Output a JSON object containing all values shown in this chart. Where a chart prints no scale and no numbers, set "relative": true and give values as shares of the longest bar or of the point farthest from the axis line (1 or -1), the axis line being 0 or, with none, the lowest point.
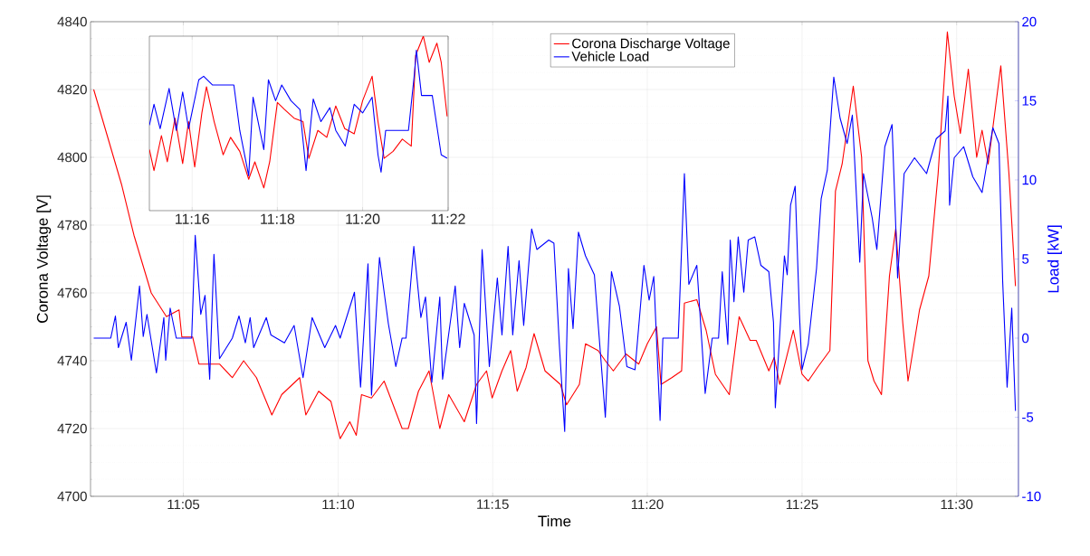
{
  "chart_data": [
    {
      "type": "line",
      "xlabel": "Time",
      "ylabel": "Corona Voltage [V]",
      "y2label": "Load [kW]",
      "xlim": [
        11.0333,
        11.5333
      ],
      "xticks": [
        {
          "value": 11.0833,
          "label": "11:05"
        },
        {
          "value": 11.1667,
          "label": "11:10"
        },
        {
          "value": 11.25,
          "label": "11:15"
        },
        {
          "value": 11.3333,
          "label": "11:20"
        },
        {
          "value": 11.4167,
          "label": "11:25"
        },
        {
          "value": 11.5,
          "label": "11:30"
        }
      ],
      "ylim": [
        4700,
        4840
      ],
      "yticks": [
        4700,
        4720,
        4740,
        4760,
        4780,
        4800,
        4820,
        4840
      ],
      "y2lim": [
        -10,
        20
      ],
      "y2ticks": [
        -10,
        -5,
        0,
        5,
        10,
        15,
        20
      ],
      "grid": true,
      "legend": "top",
      "series": [
        {
          "name": "Corona Discharge Voltage",
          "color": "#ff0000",
          "x": [
            11.035,
            11.05,
            11.0567,
            11.066,
            11.0742,
            11.081,
            11.0825,
            11.0883,
            11.0917,
            11.1028,
            11.1097,
            11.1158,
            11.1227,
            11.131,
            11.1363,
            11.146,
            11.1493,
            11.1562,
            11.1628,
            11.1678,
            11.173,
            11.1765,
            11.1793,
            11.1847,
            11.1915,
            11.2012,
            11.2045,
            11.21,
            11.2157,
            11.2215,
            11.2263,
            11.2347,
            11.2413,
            11.2467,
            11.2497,
            11.255,
            11.2597,
            11.2632,
            11.268,
            11.2723,
            11.2782,
            11.2865,
            11.2898,
            11.2967,
            11.3,
            11.3068,
            11.3107,
            11.315,
            11.3218,
            11.3287,
            11.3333,
            11.3383,
            11.3407,
            11.3465,
            11.3518,
            11.3533,
            11.36,
            11.365,
            11.37,
            11.375,
            11.3775,
            11.3828,
            11.3887,
            11.392,
            11.3988,
            11.4017,
            11.4047,
            11.412,
            11.4167,
            11.42,
            11.425,
            11.4317,
            11.4347,
            11.4383,
            11.4443,
            11.4488,
            11.4522,
            11.4555,
            11.4595,
            11.4638,
            11.4672,
            11.471,
            11.4738,
            11.48,
            11.485,
            11.49,
            11.495,
            11.4987,
            11.502,
            11.5063,
            11.5108,
            11.5137,
            11.517,
            11.5238,
            11.5282,
            11.5317
          ],
          "values": [
            4820,
            4792,
            4777,
            4760,
            4753,
            4755,
            4747,
            4747,
            4739,
            4739,
            4735,
            4740,
            4735,
            4724,
            4730,
            4735,
            4724,
            4731,
            4728,
            4717,
            4722,
            4718,
            4730,
            4729,
            4734,
            4720,
            4720,
            4731,
            4737,
            4720,
            4730,
            4722,
            4733,
            4737,
            4729,
            4737,
            4743,
            4731,
            4738,
            4748,
            4737,
            4733,
            4727,
            4733,
            4745,
            4743,
            4740,
            4737,
            4742,
            4739,
            4745,
            4750,
            4733,
            4735,
            4737,
            4757,
            4758,
            4749,
            4736,
            4732,
            4730,
            4753,
            4746,
            4746,
            4737,
            4741,
            4733,
            4749,
            4736,
            4734,
            4738,
            4743,
            4790,
            4798,
            4821,
            4800,
            4740,
            4734,
            4730,
            4765,
            4779,
            4751,
            4734,
            4755,
            4765,
            4795,
            4837,
            4818,
            4807,
            4826,
            4800,
            4808,
            4798,
            4827,
            4795,
            4762
          ]
        },
        {
          "name": "Vehicle Load",
          "color": "#0000ff",
          "axis": "y2",
          "x": [
            11.035,
            11.0442,
            11.0467,
            11.0483,
            11.0525,
            11.0553,
            11.0597,
            11.0617,
            11.0637,
            11.0688,
            11.0728,
            11.0738,
            11.0762,
            11.0795,
            11.0878,
            11.0897,
            11.0927,
            11.095,
            11.0975,
            11.0998,
            11.1028,
            11.1097,
            11.1133,
            11.1167,
            11.1193,
            11.1212,
            11.128,
            11.1305,
            11.1378,
            11.143,
            11.1478,
            11.1527,
            11.1595,
            11.1653,
            11.1678,
            11.1755,
            11.1788,
            11.1828,
            11.1847,
            11.189,
            11.1938,
            11.1978,
            11.2012,
            11.2033,
            11.2075,
            11.2113,
            11.2138,
            11.2172,
            11.2215,
            11.223,
            11.2298,
            11.2322,
            11.2347,
            11.24,
            11.2413,
            11.2443,
            11.2482,
            11.2525,
            11.255,
            11.2583,
            11.2608,
            11.2642,
            11.2667,
            11.271,
            11.2738,
            11.2802,
            11.283,
            11.286,
            11.2888,
            11.2908,
            11.2933,
            11.2962,
            11.3,
            11.3048,
            11.3107,
            11.314,
            11.3183,
            11.3223,
            11.3267,
            11.3315,
            11.3343,
            11.3368,
            11.3402,
            11.3417,
            11.35,
            11.3533,
            11.3557,
            11.36,
            11.3645,
            11.3683,
            11.3717,
            11.3737,
            11.3767,
            11.378,
            11.38,
            11.3823,
            11.3853,
            11.3877,
            11.3912,
            11.3945,
            11.3988,
            11.4013,
            11.4023,
            11.4072,
            11.4087,
            11.4105,
            11.413,
            11.4153,
            11.4167,
            11.42,
            11.4245,
            11.427,
            11.4303,
            11.4338,
            11.4372,
            11.441,
            11.4438,
            11.4478,
            11.4498,
            11.4545,
            11.457,
            11.4613,
            11.4652,
            11.4682,
            11.4717,
            11.4773,
            11.4838,
            11.489,
            11.4938,
            11.4953,
            11.4962,
            11.4987,
            11.5038,
            11.5087,
            11.5137,
            11.5195,
            11.5228,
            11.5248,
            11.5272,
            11.5297,
            11.5317
          ],
          "values": [
            0,
            0,
            1.4,
            -0.6,
            1.0,
            -1.4,
            3.3,
            0.1,
            1.5,
            -2.2,
            1.3,
            -1.4,
            1.9,
            0,
            0,
            6.5,
            1.5,
            2.7,
            -2.6,
            5.3,
            -1.3,
            0,
            1.4,
            -0.3,
            1.3,
            -0.6,
            1.3,
            0.2,
            -0.3,
            0.8,
            -2.5,
            1.3,
            -0.6,
            0.8,
            0,
            2.9,
            -3.1,
            4.7,
            -3.6,
            5.1,
            0.9,
            -1.8,
            0,
            0,
            5.8,
            1.3,
            2.6,
            -2.8,
            2.6,
            -2.6,
            3.3,
            -0.6,
            2.2,
            0.2,
            -5.4,
            5.6,
            -1.8,
            3.8,
            0.2,
            5.8,
            0.2,
            4.9,
            0.8,
            6.9,
            5.6,
            6.2,
            6.0,
            -0.6,
            -5.9,
            4.4,
            0.6,
            6.7,
            5.2,
            4.0,
            -5.0,
            4.2,
            2.0,
            -1.8,
            -2.0,
            4.6,
            2.4,
            3.9,
            -5.2,
            0,
            0,
            10.4,
            3.4,
            4.6,
            -3.5,
            0,
            0,
            4.2,
            -0.4,
            6.2,
            2.3,
            6.4,
            2.9,
            6.2,
            6.4,
            4.6,
            4.2,
            1.0,
            -4.4,
            5.2,
            4.0,
            8.4,
            9.6,
            1.5,
            -2.0,
            -0.4,
            4.4,
            8.8,
            10.6,
            16.5,
            13.9,
            12.3,
            14.1,
            4.8,
            10.4,
            7.6,
            5.6,
            12.1,
            13.5,
            3.8,
            10.4,
            11.4,
            10.4,
            12.6,
            13.1,
            15.3,
            8.4,
            11.4,
            12.1,
            10.2,
            9.2,
            13.3,
            12.3,
            3.6,
            -3.1,
            1.9,
            -4.6
          ]
        }
      ]
    },
    {
      "type": "line",
      "relative": true,
      "tick_labels": "x",
      "grid": true,
      "xlim": [
        11.25,
        11.3667
      ],
      "xticks": [
        {
          "value": 11.2667,
          "label": "11:16"
        },
        {
          "value": 11.3,
          "label": "11:18"
        },
        {
          "value": 11.3333,
          "label": "11:20"
        },
        {
          "value": 11.3667,
          "label": "11:22"
        }
      ],
      "series": [
        {
          "color": "#ff0000",
          "x": [
            11.25,
            11.2518,
            11.2547,
            11.257,
            11.26,
            11.263,
            11.2653,
            11.2677,
            11.2705,
            11.2723,
            11.2753,
            11.2788,
            11.2817,
            11.2853,
            11.2888,
            11.2912,
            11.2947,
            11.297,
            11.3,
            11.3028,
            11.3065,
            11.31,
            11.3123,
            11.3158,
            11.3193,
            11.3228,
            11.3263,
            11.33,
            11.3333,
            11.337,
            11.3393,
            11.3417,
            11.3452,
            11.3488,
            11.3523,
            11.354,
            11.357,
            11.3593,
            11.3623,
            11.364,
            11.3663
          ],
          "values": [
            0.35,
            0.23,
            0.43,
            0.28,
            0.53,
            0.27,
            0.51,
            0.25,
            0.56,
            0.71,
            0.51,
            0.32,
            0.42,
            0.34,
            0.18,
            0.28,
            0.13,
            0.28,
            0.62,
            0.58,
            0.53,
            0.51,
            0.3,
            0.46,
            0.42,
            0.6,
            0.47,
            0.44,
            0.63,
            0.77,
            0.51,
            0.3,
            0.34,
            0.41,
            0.37,
            0.89,
            1.0,
            0.85,
            0.96,
            0.85,
            0.54
          ]
        },
        {
          "color": "#0000ff",
          "x": [
            11.25,
            11.2518,
            11.2542,
            11.2577,
            11.2605,
            11.263,
            11.2653,
            11.2693,
            11.2712,
            11.2747,
            11.283,
            11.2853,
            11.2888,
            11.2905,
            11.2947,
            11.2965,
            11.2993,
            11.3017,
            11.3053,
            11.3088,
            11.3112,
            11.314,
            11.317,
            11.3205,
            11.3228,
            11.3265,
            11.33,
            11.3333,
            11.337,
            11.3393,
            11.3405,
            11.3423,
            11.3512,
            11.3535,
            11.3543,
            11.3563,
            11.3605,
            11.364,
            11.3663
          ],
          "values": [
            0.49,
            0.61,
            0.47,
            0.7,
            0.46,
            0.68,
            0.47,
            0.75,
            0.77,
            0.72,
            0.72,
            0.46,
            0.2,
            0.65,
            0.35,
            0.75,
            0.63,
            0.72,
            0.63,
            0.58,
            0.23,
            0.64,
            0.51,
            0.59,
            0.46,
            0.37,
            0.61,
            0.56,
            0.65,
            0.32,
            0.22,
            0.46,
            0.46,
            0.78,
            0.92,
            0.66,
            0.66,
            0.32,
            0.3
          ]
        }
      ]
    }
  ]
}
